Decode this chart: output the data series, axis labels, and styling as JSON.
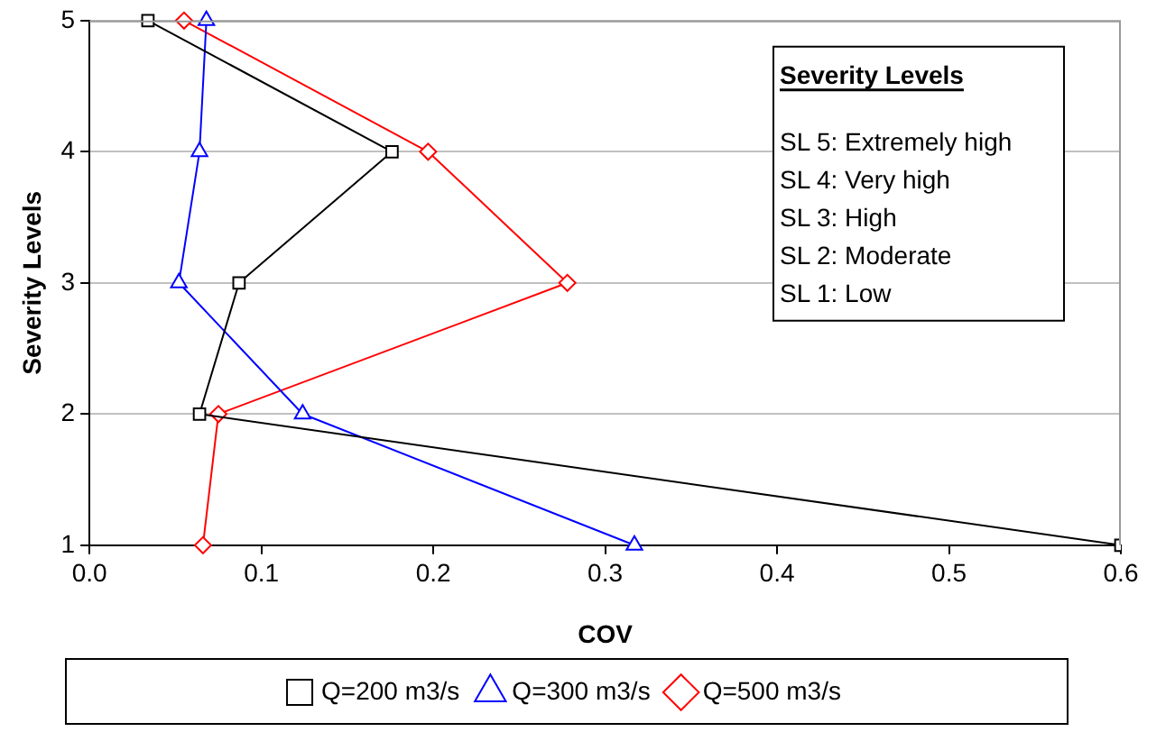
{
  "chart_data": {
    "type": "line",
    "orientation": "horizontal",
    "xlabel": "COV",
    "ylabel": "Severity Levels",
    "categories": [
      "5",
      "4",
      "3",
      "2",
      "1"
    ],
    "xlim": [
      0,
      0.6
    ],
    "xticks": [
      {
        "value": 0,
        "label": "0.0"
      },
      0.1,
      0.2,
      0.3,
      0.4,
      0.5,
      0.6
    ],
    "grid": "y",
    "legend": "bottom",
    "series": [
      {
        "name": "Q=200 m3/s",
        "color": "#000000",
        "marker": "square",
        "values": [
          0.034,
          0.176,
          0.087,
          0.064,
          0.6
        ]
      },
      {
        "name": "Q=300 m3/s",
        "color": "#0000ff",
        "marker": "triangle",
        "values": [
          0.068,
          0.064,
          0.052,
          0.124,
          0.317
        ]
      },
      {
        "name": "Q=500 m3/s",
        "color": "#ff0000",
        "marker": "diamond",
        "values": [
          0.055,
          0.197,
          0.278,
          0.075,
          0.066
        ]
      }
    ],
    "annotations": [
      "Severity Levels",
      "SL 5: Extremely high",
      "SL 4: Very high",
      "SL 3: High",
      "SL 2: Moderate",
      "SL 1: Low"
    ]
  }
}
